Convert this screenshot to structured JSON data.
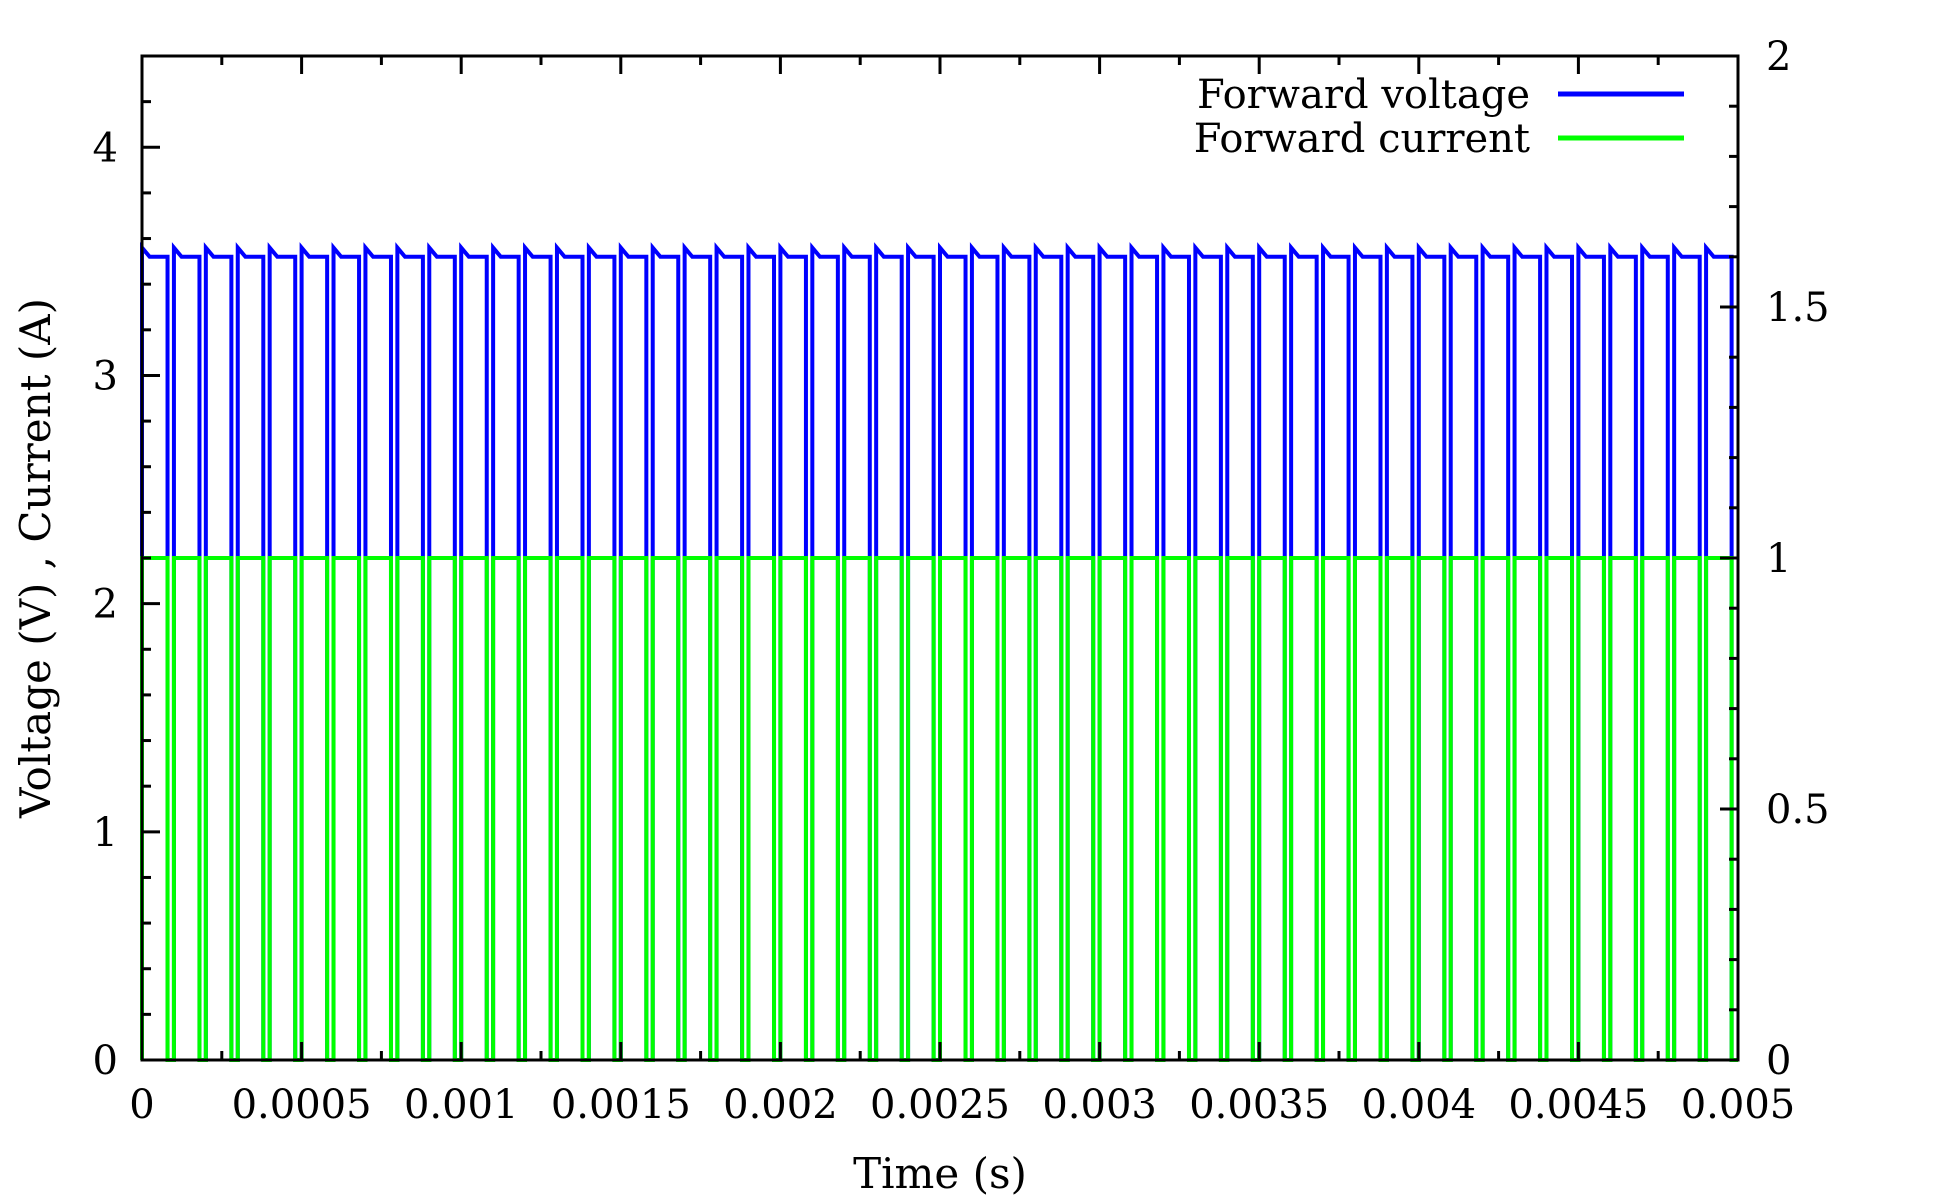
{
  "chart_data": {
    "type": "line",
    "title": "",
    "xlabel": "Time (s)",
    "ylabel": "Voltage (V) , Current (A)",
    "xlim": [
      0,
      0.005
    ],
    "ylim": [
      0,
      4.4
    ],
    "y2lim": [
      0,
      2
    ],
    "x_ticks": [
      0,
      0.0005,
      0.001,
      0.0015,
      0.002,
      0.0025,
      0.003,
      0.0035,
      0.004,
      0.0045,
      0.005
    ],
    "x_tick_labels": [
      "0",
      "0.0005",
      "0.001",
      "0.0015",
      "0.002",
      "0.0025",
      "0.003",
      "0.0035",
      "0.004",
      "0.0045",
      "0.005"
    ],
    "y_ticks": [
      0,
      1,
      2,
      3,
      4
    ],
    "y_tick_labels": [
      "0",
      "1",
      "2",
      "3",
      "4"
    ],
    "y2_ticks": [
      0,
      0.5,
      1,
      1.5,
      2
    ],
    "y2_tick_labels": [
      "0",
      "0.5",
      "1",
      "1.5",
      "2"
    ],
    "grid": false,
    "legend_position": "top-right",
    "pulse_train": {
      "period": 0.0001,
      "duty_cycle": 0.8,
      "cycles": 50
    },
    "series": [
      {
        "name": "Forward voltage",
        "axis": "left",
        "color": "#0000ff",
        "high_start": 3.56,
        "high_end": 3.52,
        "low": 0
      },
      {
        "name": "Forward current",
        "axis": "left",
        "color": "#00ff00",
        "high_start": 2.2,
        "high_end": 2.2,
        "low": 0
      }
    ]
  }
}
